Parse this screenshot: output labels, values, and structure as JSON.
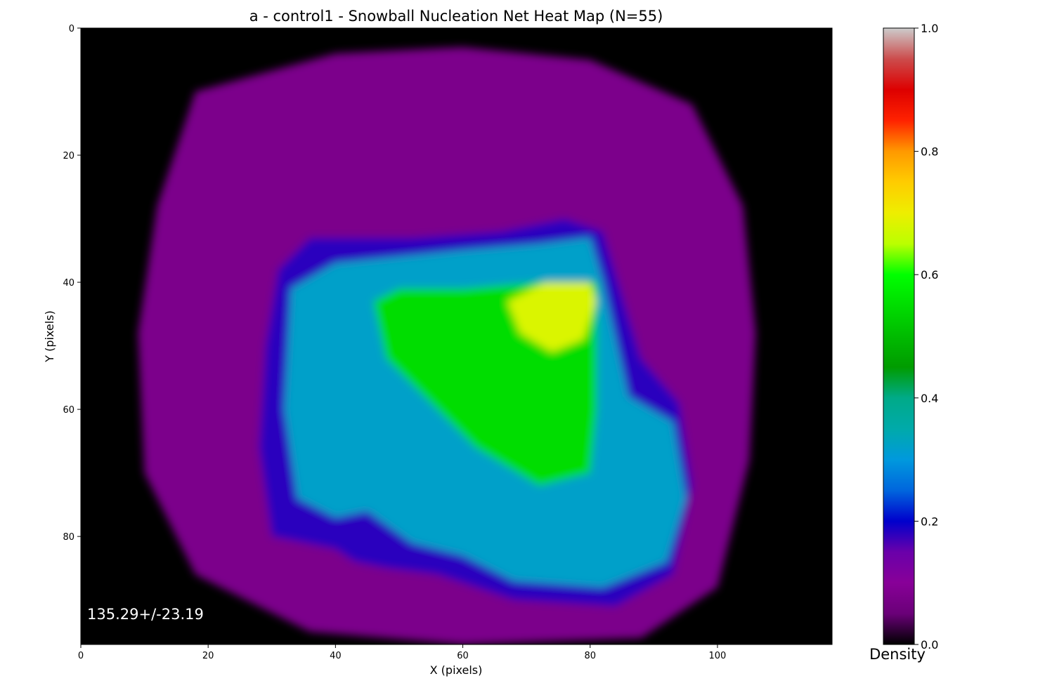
{
  "chart_data": {
    "type": "heatmap",
    "title": "a - control1 - Snowball Nucleation Net Heat Map (N=55)",
    "xlabel": "X (pixels)",
    "ylabel": "Y (pixels)",
    "xlim": [
      0,
      118
    ],
    "ylim": [
      97,
      0
    ],
    "x_ticks": [
      0,
      20,
      40,
      60,
      80,
      100
    ],
    "y_ticks": [
      0,
      20,
      40,
      60,
      80
    ],
    "x_tick_labels": [
      "0",
      "20",
      "40",
      "60",
      "80",
      "100"
    ],
    "y_tick_labels": [
      "0",
      "20",
      "40",
      "60",
      "80"
    ],
    "grid": false,
    "colormap": "nipy_spectral",
    "colorbar": {
      "label": "Density",
      "range": [
        0.0,
        1.0
      ],
      "ticks": [
        0.0,
        0.2,
        0.4,
        0.6,
        0.8,
        1.0
      ],
      "tick_labels": [
        "0.0",
        "0.2",
        "0.4",
        "0.6",
        "0.8",
        "1.0"
      ]
    },
    "annotation": "135.29+/-23.19",
    "regions": [
      {
        "name": "outer halo",
        "density": 0.08
      },
      {
        "name": "inner ring",
        "density": 0.18
      },
      {
        "name": "body",
        "density": 0.32
      },
      {
        "name": "core",
        "density": 0.55
      },
      {
        "name": "hotspot",
        "density": 0.68
      }
    ]
  }
}
